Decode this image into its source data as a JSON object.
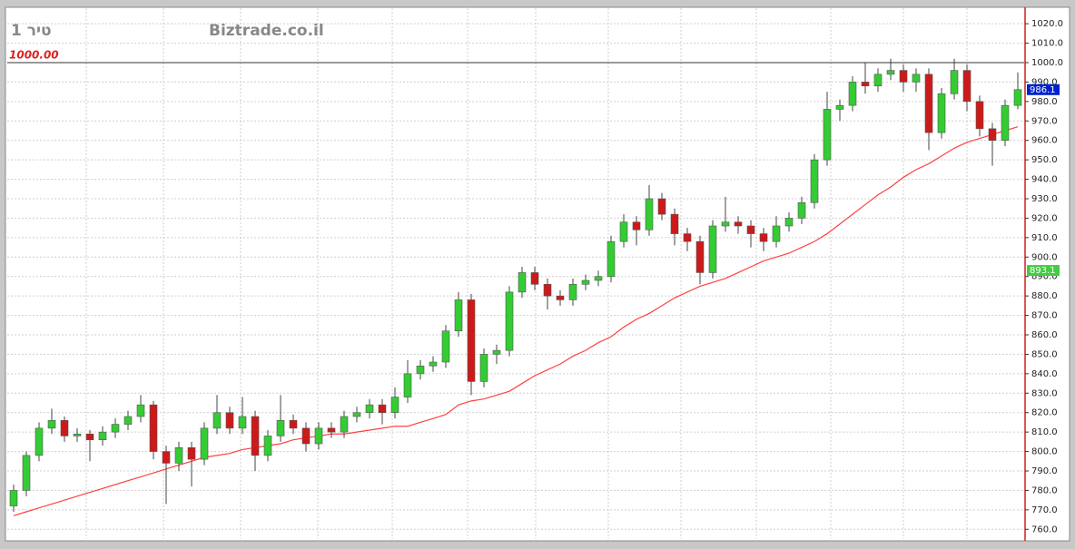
{
  "chart_data": {
    "type": "candlestick",
    "title": "Biztrade.co.il",
    "subtitle": "1 ריט",
    "ylim": [
      755,
      1028
    ],
    "yticks": [
      {
        "value": 760,
        "label": "760.0"
      },
      {
        "value": 770,
        "label": "770.0"
      },
      {
        "value": 780,
        "label": "780.0"
      },
      {
        "value": 790,
        "label": "790.0"
      },
      {
        "value": 800,
        "label": "800.0"
      },
      {
        "value": 810,
        "label": "810.0"
      },
      {
        "value": 820,
        "label": "820.0"
      },
      {
        "value": 830,
        "label": "830.0"
      },
      {
        "value": 840,
        "label": "840.0"
      },
      {
        "value": 850,
        "label": "850.0"
      },
      {
        "value": 860,
        "label": "860.0"
      },
      {
        "value": 870,
        "label": "870.0"
      },
      {
        "value": 880,
        "label": "880.0"
      },
      {
        "value": 890,
        "label": "890.0"
      },
      {
        "value": 900,
        "label": "900.0"
      },
      {
        "value": 910,
        "label": "910.0"
      },
      {
        "value": 920,
        "label": "920.0"
      },
      {
        "value": 930,
        "label": "930.0"
      },
      {
        "value": 940,
        "label": "940.0"
      },
      {
        "value": 950,
        "label": "950.0"
      },
      {
        "value": 960,
        "label": "960.0"
      },
      {
        "value": 970,
        "label": "970.0"
      },
      {
        "value": 980,
        "label": "980.0"
      },
      {
        "value": 990,
        "label": "990.0"
      },
      {
        "value": 1000,
        "label": "1000.0"
      },
      {
        "value": 1010,
        "label": "1010.0"
      },
      {
        "value": 1020,
        "label": "1020.0"
      }
    ],
    "grid": true,
    "reference_line": {
      "value": 1000,
      "label": "1000.00",
      "color": "#dd2222"
    },
    "price_labels": [
      {
        "value": 986.1,
        "color": "#0022cc"
      },
      {
        "value": 893.1,
        "color": "#44cc44"
      }
    ],
    "up_color": "#33cc33",
    "down_color": "#cc1a1a",
    "open": [
      772,
      780,
      798,
      812,
      816,
      808,
      809,
      806,
      810,
      814,
      818,
      824,
      800,
      794,
      802,
      796,
      812,
      820,
      812,
      818,
      798,
      808,
      816,
      812,
      804,
      812,
      810,
      818,
      820,
      824,
      820,
      828,
      840,
      844,
      846,
      862,
      878,
      836,
      850,
      852,
      882,
      892,
      886,
      880,
      878,
      886,
      888,
      890,
      908,
      918,
      914,
      930,
      922,
      912,
      908,
      892,
      916,
      918,
      916,
      912,
      908,
      916,
      920,
      928,
      950,
      976,
      978,
      990,
      988,
      994,
      996,
      990,
      994,
      964,
      984,
      996,
      980,
      966,
      960,
      978
    ],
    "high": [
      783,
      800,
      815,
      822,
      818,
      812,
      811,
      813,
      817,
      821,
      829,
      826,
      803,
      805,
      805,
      815,
      829,
      823,
      828,
      821,
      811,
      829,
      819,
      815,
      815,
      815,
      821,
      823,
      827,
      827,
      833,
      847,
      847,
      849,
      865,
      882,
      881,
      853,
      855,
      885,
      895,
      895,
      889,
      883,
      889,
      891,
      893,
      911,
      922,
      921,
      937,
      933,
      925,
      915,
      911,
      919,
      931,
      921,
      919,
      915,
      921,
      923,
      931,
      953,
      985,
      981,
      993,
      1000,
      997,
      1002,
      999,
      997,
      997,
      987,
      1002,
      999,
      983,
      969,
      981,
      995
    ],
    "low": [
      769,
      777,
      795,
      809,
      805,
      805,
      795,
      803,
      807,
      811,
      815,
      796,
      773,
      790,
      782,
      793,
      809,
      809,
      809,
      790,
      795,
      805,
      809,
      800,
      801,
      807,
      807,
      815,
      817,
      814,
      817,
      825,
      837,
      841,
      843,
      859,
      829,
      833,
      845,
      849,
      879,
      883,
      873,
      875,
      875,
      883,
      885,
      887,
      905,
      906,
      911,
      919,
      906,
      903,
      886,
      889,
      913,
      912,
      905,
      903,
      905,
      913,
      917,
      925,
      947,
      970,
      975,
      984,
      985,
      991,
      985,
      985,
      955,
      961,
      981,
      975,
      962,
      947,
      957,
      976
    ],
    "close": [
      780,
      798,
      812,
      816,
      808,
      809,
      806,
      810,
      814,
      818,
      824,
      800,
      794,
      802,
      796,
      812,
      820,
      812,
      818,
      798,
      808,
      816,
      812,
      804,
      812,
      810,
      818,
      820,
      824,
      820,
      828,
      840,
      844,
      846,
      862,
      878,
      836,
      850,
      852,
      882,
      892,
      886,
      880,
      878,
      886,
      888,
      890,
      908,
      918,
      914,
      930,
      922,
      912,
      908,
      892,
      916,
      918,
      916,
      912,
      908,
      916,
      920,
      928,
      950,
      976,
      978,
      990,
      988,
      994,
      996,
      990,
      994,
      964,
      984,
      996,
      980,
      966,
      960,
      978,
      986.1
    ],
    "ma": {
      "color": "#ff4040",
      "values": [
        767,
        769,
        771,
        773,
        775,
        777,
        779,
        781,
        783,
        785,
        787,
        789,
        791,
        793,
        795,
        797,
        798,
        799,
        801,
        802,
        803,
        804,
        806,
        807,
        808,
        809,
        809,
        810,
        811,
        812,
        813,
        813,
        815,
        817,
        819,
        824,
        826,
        827,
        829,
        831,
        835,
        839,
        842,
        845,
        849,
        852,
        856,
        859,
        864,
        868,
        871,
        875,
        879,
        882,
        885,
        887,
        889,
        892,
        895,
        898,
        900,
        902,
        905,
        908,
        912,
        917,
        922,
        927,
        932,
        936,
        941,
        945,
        948,
        952,
        956,
        959,
        961,
        963,
        965,
        967
      ]
    }
  }
}
